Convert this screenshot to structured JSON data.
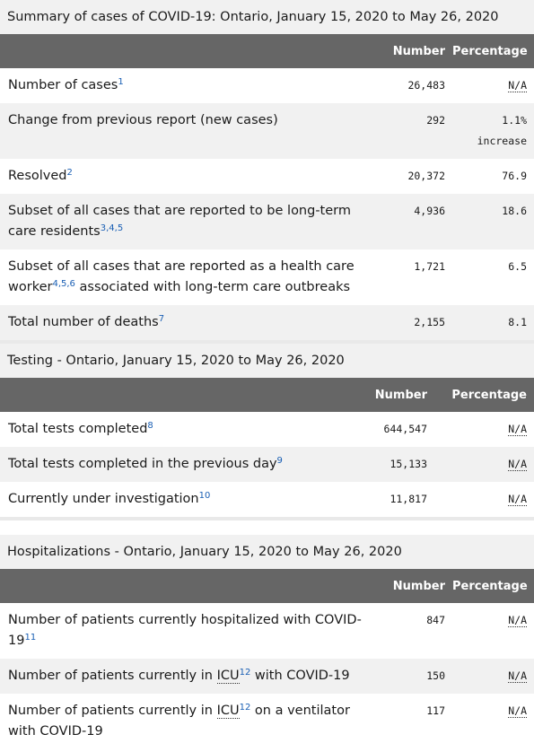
{
  "summary": {
    "title": "Summary of cases of COVID-19: Ontario, January 15, 2020 to May 26, 2020",
    "col_number": "Number",
    "col_percentage": "Percentage",
    "rows": [
      {
        "label": "Number of cases",
        "sup": "1",
        "number": "26,483",
        "pct": "N/A",
        "pct2": ""
      },
      {
        "label": "Change from previous report (new cases)",
        "sup": "",
        "number": "292",
        "pct": "1.1%",
        "pct2": "increase"
      },
      {
        "label": "Resolved",
        "sup": "2",
        "number": "20,372",
        "pct": "76.9",
        "pct2": ""
      },
      {
        "label": "Subset of all cases that are reported to be long-term care residents",
        "sup": "3,4,5",
        "number": "4,936",
        "pct": "18.6",
        "pct2": ""
      },
      {
        "label_a": "Subset of all cases that are reported as a health care worker",
        "sup": "4,5,6",
        "label_b": " associated with long-term care outbreaks",
        "number": "1,721",
        "pct": "6.5",
        "pct2": ""
      },
      {
        "label": "Total number of deaths",
        "sup": "7",
        "number": "2,155",
        "pct": "8.1",
        "pct2": ""
      }
    ]
  },
  "testing": {
    "title_bold": "Testing",
    "title_rest": " - Ontario, January 15, 2020 to May 26, 2020",
    "col_number": "Number",
    "col_percentage": "Percentage",
    "rows": [
      {
        "label": "Total tests completed",
        "sup": "8",
        "number": "644,547",
        "pct": "N/A"
      },
      {
        "label": "Total tests completed in the previous day",
        "sup": "9",
        "number": "15,133",
        "pct": "N/A"
      },
      {
        "label": "Currently under investigation",
        "sup": "10",
        "number": "11,817",
        "pct": "N/A"
      }
    ]
  },
  "hospitalizations": {
    "title_bold": "Hospitalizations",
    "title_rest": " - Ontario, January 15, 2020 to May 26, 2020",
    "col_number": "Number",
    "col_percentage": "Percentage",
    "rows": [
      {
        "label": "Number of patients currently hospitalized with COVID-19",
        "sup": "11",
        "number": "847",
        "pct": "N/A"
      },
      {
        "label_a": "Number of patients currently in ",
        "abbr": "ICU",
        "sup": "12",
        "label_b": " with COVID-19",
        "number": "150",
        "pct": "N/A"
      },
      {
        "label_a": "Number of patients currently in ",
        "abbr": "ICU",
        "sup": "12",
        "label_b": " on a ventilator with COVID-19",
        "number": "117",
        "pct": "N/A"
      }
    ]
  }
}
